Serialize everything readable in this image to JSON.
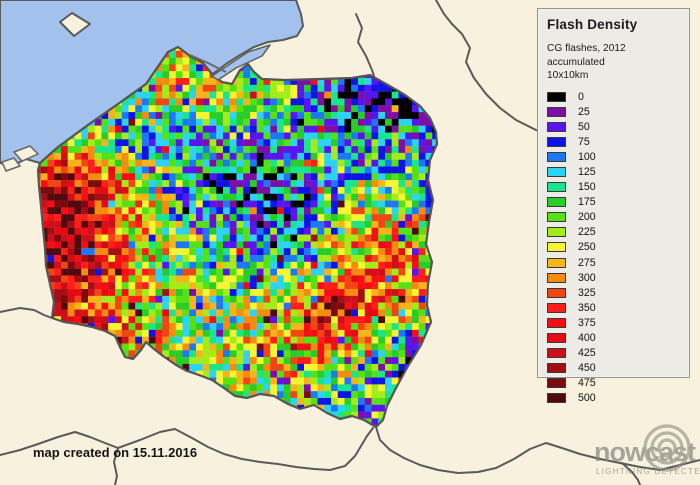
{
  "map": {
    "region": "Poland",
    "date_note": "map created on 15.11.2016",
    "sea_color": "#a2c1ed",
    "land_color": "#f8f1de",
    "border_color": "#5a5a5a"
  },
  "legend": {
    "title": "Flash Density",
    "subtitle_line1": "CG flashes, 2012 accumulated",
    "subtitle_line2": "10x10km",
    "entries": [
      {
        "value": "0",
        "color": "#000000"
      },
      {
        "value": "25",
        "color": "#7d0fa5"
      },
      {
        "value": "50",
        "color": "#5a14f0"
      },
      {
        "value": "75",
        "color": "#0f14e6"
      },
      {
        "value": "100",
        "color": "#1e78f5"
      },
      {
        "value": "125",
        "color": "#2dd2f5"
      },
      {
        "value": "150",
        "color": "#19e68c"
      },
      {
        "value": "175",
        "color": "#28cd28"
      },
      {
        "value": "200",
        "color": "#55e114"
      },
      {
        "value": "225",
        "color": "#a5eb19"
      },
      {
        "value": "250",
        "color": "#f5f532"
      },
      {
        "value": "275",
        "color": "#f5b419"
      },
      {
        "value": "300",
        "color": "#f58c0f"
      },
      {
        "value": "325",
        "color": "#f04614"
      },
      {
        "value": "350",
        "color": "#ff1e19"
      },
      {
        "value": "375",
        "color": "#f50f14"
      },
      {
        "value": "400",
        "color": "#e60a14"
      },
      {
        "value": "425",
        "color": "#cd0f19"
      },
      {
        "value": "450",
        "color": "#a50f14"
      },
      {
        "value": "475",
        "color": "#7d0a0f"
      },
      {
        "value": "500",
        "color": "#500a0f"
      }
    ]
  },
  "watermark": {
    "brand": "nowcast",
    "tagline": "LIGHTNING DETECTED."
  },
  "chart_data": {
    "type": "heatmap",
    "title": "Flash Density",
    "subtitle": "CG flashes, 2012 accumulated",
    "cell_size": "10x10km",
    "region": "Poland",
    "value_bins": [
      0,
      25,
      50,
      75,
      100,
      125,
      150,
      175,
      200,
      225,
      250,
      275,
      300,
      325,
      350,
      375,
      400,
      425,
      450,
      475,
      500
    ],
    "bin_colors": [
      "#000000",
      "#7d0fa5",
      "#5a14f0",
      "#0f14e6",
      "#1e78f5",
      "#2dd2f5",
      "#19e68c",
      "#28cd28",
      "#55e114",
      "#a5eb19",
      "#f5f532",
      "#f5b419",
      "#f58c0f",
      "#f04614",
      "#ff1e19",
      "#f50f14",
      "#e60a14",
      "#cd0f19",
      "#a50f14",
      "#7d0a0f",
      "#500a0f"
    ],
    "coarse_field_note": "approximate mean CG flash density read from map, 15 cols west-to-east x 13 rows north-to-south over Poland",
    "coarse_field": {
      "cols": 15,
      "rows": 13,
      "values": [
        [
          160,
          170,
          180,
          200,
          230,
          250,
          230,
          210,
          170,
          130,
          110,
          95,
          85,
          80,
          80
        ],
        [
          150,
          165,
          180,
          200,
          240,
          280,
          260,
          230,
          190,
          150,
          120,
          95,
          70,
          60,
          65
        ],
        [
          165,
          175,
          185,
          205,
          225,
          245,
          225,
          185,
          165,
          145,
          120,
          85,
          55,
          50,
          70
        ],
        [
          210,
          260,
          225,
          185,
          155,
          135,
          125,
          135,
          145,
          150,
          140,
          130,
          125,
          140,
          155
        ],
        [
          360,
          420,
          370,
          290,
          215,
          160,
          120,
          100,
          95,
          135,
          165,
          185,
          205,
          175,
          165
        ],
        [
          430,
          470,
          425,
          345,
          250,
          185,
          130,
          90,
          75,
          105,
          155,
          205,
          235,
          205,
          185
        ],
        [
          455,
          480,
          415,
          330,
          260,
          220,
          180,
          140,
          115,
          135,
          185,
          255,
          305,
          285,
          235
        ],
        [
          390,
          435,
          400,
          320,
          260,
          230,
          200,
          180,
          165,
          185,
          225,
          305,
          355,
          335,
          285
        ],
        [
          355,
          390,
          365,
          300,
          250,
          230,
          210,
          205,
          235,
          330,
          415,
          375,
          330,
          280,
          235
        ],
        [
          305,
          365,
          415,
          345,
          280,
          240,
          220,
          215,
          245,
          300,
          345,
          295,
          215,
          145,
          120
        ],
        [
          260,
          300,
          370,
          300,
          260,
          230,
          215,
          225,
          260,
          275,
          245,
          195,
          155,
          110,
          95
        ],
        [
          230,
          250,
          260,
          250,
          230,
          222,
          232,
          248,
          228,
          208,
          188,
          168,
          142,
          122,
          110
        ],
        [
          210,
          215,
          220,
          225,
          205,
          230,
          255,
          240,
          218,
          188,
          168,
          148,
          130,
          120,
          115
        ]
      ]
    },
    "noise_amplitude": 115,
    "outlier_probability": 0.07
  }
}
